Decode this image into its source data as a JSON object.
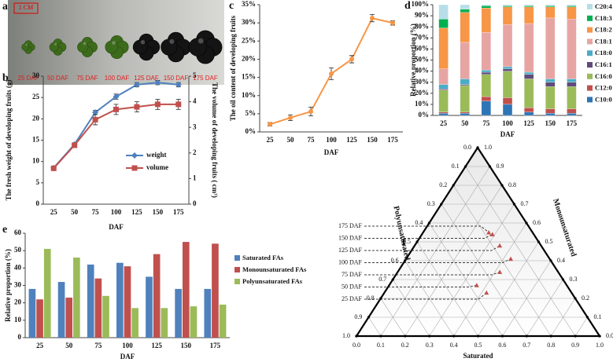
{
  "chart_data": [
    {
      "type": "image",
      "label": "a",
      "scale": "1 CM",
      "captions": [
        "25 DAF",
        "50 DAF",
        "75 DAF",
        "100 DAF",
        "125 DAF",
        "150 DAF",
        "175 DAF"
      ]
    },
    {
      "type": "line",
      "label": "b",
      "categories": [
        "25",
        "50",
        "75",
        "100",
        "125",
        "150",
        "175"
      ],
      "xlabel": "DAF",
      "ylabel": "The fresh weight of developing fruits (g)",
      "y2label": "The volume of developing fruits ( cm³)",
      "ylim": [
        0,
        30
      ],
      "yticks": [
        0,
        5,
        10,
        15,
        20,
        25,
        30
      ],
      "y2lim": [
        0,
        5
      ],
      "y2ticks": [
        0,
        1,
        2,
        3,
        4,
        5
      ],
      "series": [
        {
          "name": "weight",
          "color": "#4f81bd",
          "marker": "diamond",
          "values": [
            8.5,
            14,
            21.5,
            25.2,
            28,
            28.5,
            28
          ],
          "errors": [
            0.3,
            0.4,
            0.5,
            0.6,
            0.5,
            0.5,
            0.5
          ]
        },
        {
          "name": "volume",
          "color": "#c0504d",
          "marker": "square",
          "axis": "y2",
          "values": [
            1.4,
            2.3,
            3.3,
            3.7,
            3.8,
            3.9,
            3.9
          ],
          "errors": [
            0.06,
            0.08,
            0.2,
            0.2,
            0.2,
            0.2,
            0.2
          ]
        }
      ]
    },
    {
      "type": "line",
      "label": "c",
      "categories": [
        "25",
        "50",
        "75",
        "100",
        "125",
        "150",
        "175"
      ],
      "xlabel": "DAF",
      "ylabel": "The oil content of developing fruits",
      "color": "#f79646",
      "marker": "circle",
      "values": [
        2.1,
        3.9,
        5.6,
        16,
        20,
        31.3,
        30
      ],
      "errors": [
        0.5,
        0.8,
        1.2,
        1.6,
        1,
        1,
        0.6
      ],
      "ylim": [
        0,
        35
      ],
      "yticks": [
        {
          "value": 0,
          "label": "0%"
        },
        {
          "value": 5,
          "label": "5%"
        },
        {
          "value": 10,
          "label": "10%"
        },
        {
          "value": 15,
          "label": "15%"
        },
        {
          "value": 20,
          "label": "20%"
        },
        {
          "value": 25,
          "label": "25%"
        },
        {
          "value": 30,
          "label": "30%"
        },
        {
          "value": 35,
          "label": "35%"
        }
      ]
    },
    {
      "type": "bar",
      "label": "d",
      "stacked": true,
      "categories": [
        "25",
        "50",
        "75",
        "100",
        "125",
        "150",
        "175"
      ],
      "xlabel": "DAF",
      "ylabel": "Relative proportion (%)",
      "ylim": [
        0,
        100
      ],
      "yticks": [
        {
          "value": 0,
          "label": "0%"
        },
        {
          "value": 10,
          "label": "10%"
        },
        {
          "value": 20,
          "label": "20%"
        },
        {
          "value": 30,
          "label": "30%"
        },
        {
          "value": 40,
          "label": "40%"
        },
        {
          "value": 50,
          "label": "50%"
        },
        {
          "value": 60,
          "label": "60%"
        },
        {
          "value": 70,
          "label": "70%"
        },
        {
          "value": 80,
          "label": "80%"
        },
        {
          "value": 90,
          "label": "90%"
        },
        {
          "value": 100,
          "label": "100%"
        }
      ],
      "series": [
        {
          "name": "C10:0",
          "color": "#2e75b6",
          "values": [
            2,
            2,
            13,
            10,
            3,
            2,
            2
          ]
        },
        {
          "name": "C12:0",
          "color": "#c0504d",
          "values": [
            1,
            1,
            4,
            6,
            4,
            4,
            4
          ]
        },
        {
          "name": "C16:0",
          "color": "#9bbb59",
          "values": [
            20,
            24,
            20,
            24,
            26,
            20,
            20
          ]
        },
        {
          "name": "C16:1",
          "color": "#604a7b",
          "values": [
            1,
            1,
            2,
            2,
            4,
            4,
            4
          ]
        },
        {
          "name": "C18:0",
          "color": "#4bacc6",
          "values": [
            4,
            5,
            2,
            2,
            2,
            3,
            3
          ]
        },
        {
          "name": "C18:1",
          "color": "#e6a5a3",
          "values": [
            14,
            33,
            34,
            38,
            44,
            55,
            54
          ]
        },
        {
          "name": "C18:2",
          "color": "#f79646",
          "values": [
            37,
            27,
            22,
            16,
            15,
            10,
            11
          ]
        },
        {
          "name": "C18:3",
          "color": "#00b050",
          "values": [
            8,
            3,
            2,
            1,
            1,
            1,
            1
          ]
        },
        {
          "name": "C20:4",
          "color": "#b7dee8",
          "values": [
            13,
            4,
            1,
            1,
            1,
            1,
            1
          ]
        }
      ]
    },
    {
      "type": "bar",
      "label": "e",
      "categories": [
        "25",
        "50",
        "75",
        "100",
        "125",
        "150",
        "175"
      ],
      "xlabel": "DAF",
      "ylabel": "Relative proportion (%)",
      "ylim": [
        0,
        60
      ],
      "yticks": [
        0,
        10,
        20,
        30,
        40,
        50,
        60
      ],
      "series": [
        {
          "name": "Saturated FAs",
          "color": "#4f81bd",
          "values": [
            28,
            32,
            42,
            43,
            35,
            28,
            28
          ]
        },
        {
          "name": "Monounsaturated FAs",
          "color": "#c0504d",
          "values": [
            22,
            23,
            34,
            41,
            48,
            55,
            54
          ]
        },
        {
          "name": "Polyunsaturated FAs",
          "color": "#9bbb59",
          "values": [
            51,
            46,
            24,
            17,
            17,
            18,
            19
          ]
        }
      ]
    },
    {
      "type": "ternary",
      "label": "f",
      "bottom_label": "Saturated",
      "left_label": "Polyunsaturated",
      "right_label": "Monounsaturated",
      "ticks": [
        {
          "value": 0,
          "label": "0.0"
        },
        0.1,
        0.2,
        0.3,
        0.4,
        0.5,
        0.6,
        0.7,
        0.8,
        0.9,
        {
          "value": 1,
          "label": "1.0"
        }
      ],
      "point_color": "#c0504d",
      "points": [
        {
          "name": "25 DAF",
          "values": [
            0.42,
            0.23,
            0.35
          ]
        },
        {
          "name": "50 DAF",
          "values": [
            0.36,
            0.27,
            0.37
          ]
        },
        {
          "name": "75 DAF",
          "values": [
            0.42,
            0.34,
            0.24
          ]
        },
        {
          "name": "100 DAF",
          "values": [
            0.43,
            0.41,
            0.16
          ]
        },
        {
          "name": "125 DAF",
          "values": [
            0.35,
            0.48,
            0.17
          ]
        },
        {
          "name": "150 DAF",
          "values": [
            0.29,
            0.54,
            0.17
          ]
        },
        {
          "name": "175 DAF",
          "values": [
            0.27,
            0.55,
            0.18
          ]
        }
      ]
    }
  ]
}
